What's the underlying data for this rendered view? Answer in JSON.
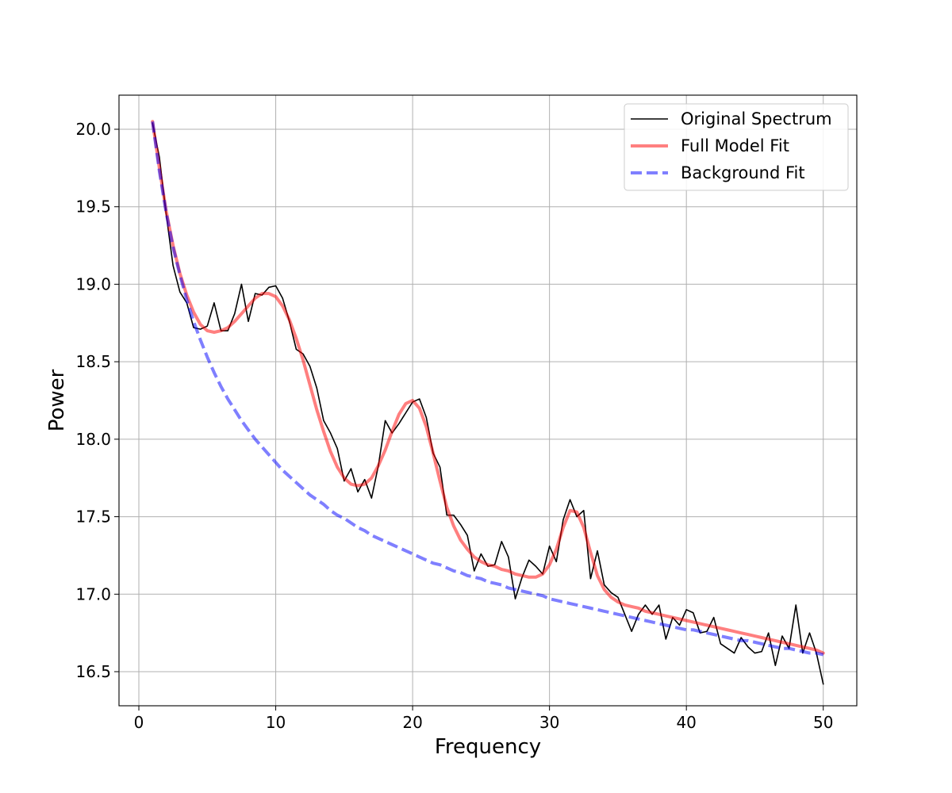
{
  "chart_data": {
    "type": "line",
    "title": "",
    "xlabel": "Frequency",
    "ylabel": "Power",
    "xlim": [
      -1.45,
      52.45
    ],
    "ylim": [
      16.28,
      20.22
    ],
    "xticks": [
      0,
      10,
      20,
      30,
      40,
      50
    ],
    "yticks": [
      16.5,
      17.0,
      17.5,
      18.0,
      18.5,
      19.0,
      19.5,
      20.0
    ],
    "xtick_labels": [
      "0",
      "10",
      "20",
      "30",
      "40",
      "50"
    ],
    "ytick_labels": [
      "16.5",
      "17.0",
      "17.5",
      "18.0",
      "18.5",
      "19.0",
      "19.5",
      "20.0"
    ],
    "grid": true,
    "legend_position": "top-right",
    "series": [
      {
        "name": "Original Spectrum",
        "style": "solid",
        "color": "#000000",
        "x": [
          1.0,
          1.5,
          2.0,
          2.5,
          3.0,
          3.5,
          4.0,
          4.5,
          5.0,
          5.5,
          6.0,
          6.5,
          7.0,
          7.5,
          8.0,
          8.5,
          9.0,
          9.5,
          10.0,
          10.5,
          11.0,
          11.5,
          12.0,
          12.5,
          13.0,
          13.5,
          14.0,
          14.5,
          15.0,
          15.5,
          16.0,
          16.5,
          17.0,
          17.5,
          18.0,
          18.5,
          19.0,
          19.5,
          20.0,
          20.5,
          21.0,
          21.5,
          22.0,
          22.5,
          23.0,
          23.5,
          24.0,
          24.5,
          25.0,
          25.5,
          26.0,
          26.5,
          27.0,
          27.5,
          28.0,
          28.5,
          29.0,
          29.5,
          30.0,
          30.5,
          31.0,
          31.5,
          32.0,
          32.5,
          33.0,
          33.5,
          34.0,
          34.5,
          35.0,
          35.5,
          36.0,
          36.5,
          37.0,
          37.5,
          38.0,
          38.5,
          39.0,
          39.5,
          40.0,
          40.5,
          41.0,
          41.5,
          42.0,
          42.5,
          43.0,
          43.5,
          44.0,
          44.5,
          45.0,
          45.5,
          46.0,
          46.5,
          47.0,
          47.5,
          48.0,
          48.5,
          49.0,
          49.5,
          50.0
        ],
        "values": [
          20.04,
          19.82,
          19.45,
          19.12,
          18.95,
          18.88,
          18.72,
          18.71,
          18.73,
          18.88,
          18.7,
          18.7,
          18.81,
          19.0,
          18.76,
          18.94,
          18.93,
          18.98,
          18.99,
          18.91,
          18.76,
          18.58,
          18.55,
          18.47,
          18.33,
          18.12,
          18.04,
          17.94,
          17.73,
          17.81,
          17.66,
          17.74,
          17.62,
          17.83,
          18.12,
          18.04,
          18.1,
          18.17,
          18.24,
          18.26,
          18.14,
          17.91,
          17.82,
          17.51,
          17.51,
          17.45,
          17.38,
          17.15,
          17.26,
          17.18,
          17.19,
          17.34,
          17.24,
          16.97,
          17.11,
          17.22,
          17.18,
          17.13,
          17.31,
          17.21,
          17.48,
          17.61,
          17.5,
          17.54,
          17.1,
          17.28,
          17.06,
          17.01,
          16.98,
          16.87,
          16.76,
          16.87,
          16.93,
          16.87,
          16.93,
          16.71,
          16.85,
          16.8,
          16.9,
          16.88,
          16.75,
          16.76,
          16.85,
          16.68,
          16.65,
          16.62,
          16.72,
          16.66,
          16.62,
          16.63,
          16.75,
          16.54,
          16.73,
          16.65,
          16.93,
          16.62,
          16.75,
          16.62,
          16.42
        ]
      },
      {
        "name": "Full Model Fit",
        "style": "solid",
        "color": "#ff0000",
        "opacity": 0.5,
        "x": [
          1.0,
          1.5,
          2.0,
          2.5,
          3.0,
          3.5,
          4.0,
          4.5,
          5.0,
          5.5,
          6.0,
          6.5,
          7.0,
          7.5,
          8.0,
          8.5,
          9.0,
          9.5,
          10.0,
          10.5,
          11.0,
          11.5,
          12.0,
          12.5,
          13.0,
          13.5,
          14.0,
          14.5,
          15.0,
          15.5,
          16.0,
          16.5,
          17.0,
          17.5,
          18.0,
          18.5,
          19.0,
          19.5,
          20.0,
          20.5,
          21.0,
          21.5,
          22.0,
          22.5,
          23.0,
          23.5,
          24.0,
          24.5,
          25.0,
          25.5,
          26.0,
          26.5,
          27.0,
          27.5,
          28.0,
          28.5,
          29.0,
          29.5,
          30.0,
          30.5,
          31.0,
          31.5,
          32.0,
          32.5,
          33.0,
          33.5,
          34.0,
          34.5,
          35.0,
          35.5,
          36.0,
          36.5,
          37.0,
          37.5,
          38.0,
          38.5,
          39.0,
          39.5,
          40.0,
          40.5,
          41.0,
          41.5,
          42.0,
          42.5,
          43.0,
          43.5,
          44.0,
          44.5,
          45.0,
          45.5,
          46.0,
          46.5,
          47.0,
          47.5,
          48.0,
          48.5,
          49.0,
          49.5,
          50.0
        ],
        "values": [
          20.05,
          19.75,
          19.47,
          19.25,
          19.07,
          18.93,
          18.82,
          18.74,
          18.7,
          18.69,
          18.7,
          18.72,
          18.76,
          18.81,
          18.86,
          18.91,
          18.94,
          18.94,
          18.92,
          18.86,
          18.77,
          18.65,
          18.51,
          18.35,
          18.19,
          18.05,
          17.92,
          17.82,
          17.75,
          17.71,
          17.7,
          17.71,
          17.75,
          17.83,
          17.93,
          18.05,
          18.16,
          18.23,
          18.25,
          18.2,
          18.08,
          17.91,
          17.73,
          17.56,
          17.44,
          17.35,
          17.29,
          17.24,
          17.21,
          17.19,
          17.18,
          17.16,
          17.15,
          17.13,
          17.12,
          17.11,
          17.11,
          17.13,
          17.19,
          17.29,
          17.43,
          17.54,
          17.53,
          17.43,
          17.27,
          17.12,
          17.03,
          16.98,
          16.95,
          16.93,
          16.92,
          16.91,
          16.89,
          16.88,
          16.87,
          16.86,
          16.85,
          16.84,
          16.83,
          16.82,
          16.81,
          16.8,
          16.79,
          16.78,
          16.77,
          16.76,
          16.75,
          16.74,
          16.73,
          16.72,
          16.71,
          16.7,
          16.69,
          16.68,
          16.67,
          16.66,
          16.65,
          16.64,
          16.62
        ]
      },
      {
        "name": "Background Fit",
        "style": "dashed",
        "color": "#0000ff",
        "opacity": 0.5,
        "x": [
          1.0,
          1.5,
          2.0,
          2.5,
          3.0,
          3.5,
          4.0,
          4.5,
          5.0,
          5.5,
          6.0,
          6.5,
          7.0,
          7.5,
          8.0,
          8.5,
          9.0,
          9.5,
          10.0,
          10.5,
          11.0,
          11.5,
          12.0,
          12.5,
          13.0,
          13.5,
          14.0,
          14.5,
          15.0,
          15.5,
          16.0,
          16.5,
          17.0,
          17.5,
          18.0,
          18.5,
          19.0,
          19.5,
          20.0,
          20.5,
          21.0,
          21.5,
          22.0,
          22.5,
          23.0,
          23.5,
          24.0,
          24.5,
          25.0,
          25.5,
          26.0,
          26.5,
          27.0,
          27.5,
          28.0,
          28.5,
          29.0,
          29.5,
          30.0,
          30.5,
          31.0,
          31.5,
          32.0,
          32.5,
          33.0,
          33.5,
          34.0,
          34.5,
          35.0,
          35.5,
          36.0,
          36.5,
          37.0,
          37.5,
          38.0,
          38.5,
          39.0,
          39.5,
          40.0,
          40.5,
          41.0,
          41.5,
          42.0,
          42.5,
          43.0,
          43.5,
          44.0,
          44.5,
          45.0,
          45.5,
          46.0,
          46.5,
          47.0,
          47.5,
          48.0,
          48.5,
          49.0,
          49.5,
          50.0
        ],
        "values": [
          20.05,
          19.73,
          19.46,
          19.24,
          19.06,
          18.9,
          18.76,
          18.64,
          18.53,
          18.43,
          18.34,
          18.26,
          18.19,
          18.12,
          18.06,
          18.0,
          17.95,
          17.9,
          17.85,
          17.8,
          17.76,
          17.72,
          17.68,
          17.64,
          17.61,
          17.58,
          17.54,
          17.51,
          17.49,
          17.46,
          17.43,
          17.41,
          17.38,
          17.36,
          17.34,
          17.32,
          17.3,
          17.28,
          17.26,
          17.24,
          17.22,
          17.2,
          17.19,
          17.17,
          17.15,
          17.14,
          17.12,
          17.11,
          17.1,
          17.08,
          17.07,
          17.06,
          17.04,
          17.03,
          17.02,
          17.01,
          17.0,
          16.99,
          16.97,
          16.96,
          16.95,
          16.94,
          16.93,
          16.92,
          16.91,
          16.9,
          16.89,
          16.88,
          16.87,
          16.86,
          16.85,
          16.84,
          16.83,
          16.82,
          16.81,
          16.8,
          16.79,
          16.78,
          16.77,
          16.77,
          16.76,
          16.75,
          16.74,
          16.73,
          16.72,
          16.71,
          16.7,
          16.7,
          16.69,
          16.68,
          16.67,
          16.66,
          16.65,
          16.65,
          16.64,
          16.63,
          16.62,
          16.62,
          16.61
        ]
      }
    ]
  }
}
